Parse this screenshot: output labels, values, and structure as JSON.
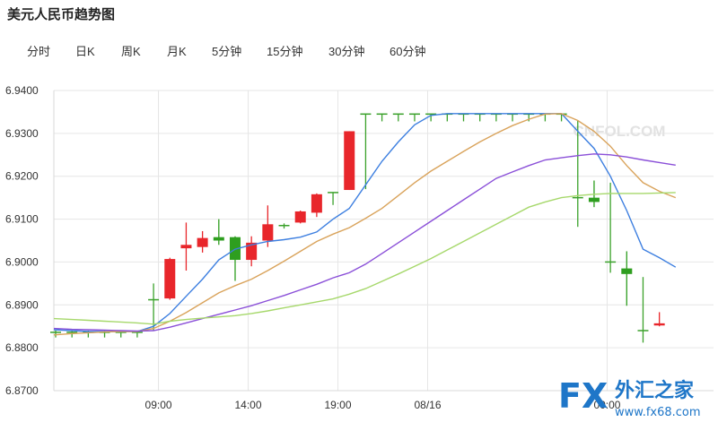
{
  "page": {
    "title": "美元人民币趋势图"
  },
  "tabs": [
    {
      "label": "分时"
    },
    {
      "label": "日K"
    },
    {
      "label": "周K"
    },
    {
      "label": "月K"
    },
    {
      "label": "5分钟"
    },
    {
      "label": "15分钟"
    },
    {
      "label": "30分钟"
    },
    {
      "label": "60分钟"
    }
  ],
  "watermark": {
    "text": "CNFOL.COM",
    "logo_fx": "FX",
    "logo_cn": "外汇之家",
    "logo_url": "www.fx68.com"
  },
  "colors": {
    "up": "#e8262b",
    "down": "#2e9e1f",
    "flat": "#3aa12a",
    "ma5": "#3d7fe0",
    "ma10": "#d9a35b",
    "ma20": "#8a4fd8",
    "ma30": "#a6d86b",
    "grid": "#e6e6e6"
  },
  "chart_data": {
    "type": "candlestick",
    "ylim": [
      6.87,
      6.94
    ],
    "yticks": [
      "6.9400",
      "6.9300",
      "6.9200",
      "6.9100",
      "6.9000",
      "6.8900",
      "6.8800",
      "6.8700"
    ],
    "xticks": [
      {
        "index": 6.3,
        "label": "09:00"
      },
      {
        "index": 11.8,
        "label": "14:00"
      },
      {
        "index": 17.3,
        "label": "19:00"
      },
      {
        "index": 22.8,
        "label": "08/16"
      },
      {
        "index": 33.8,
        "label": "00:00"
      }
    ],
    "candles": [
      {
        "o": 6.8836,
        "h": 6.884,
        "l": 6.8824,
        "c": 6.8836
      },
      {
        "o": 6.8836,
        "h": 6.884,
        "l": 6.8824,
        "c": 6.8836
      },
      {
        "o": 6.8836,
        "h": 6.884,
        "l": 6.8824,
        "c": 6.8836
      },
      {
        "o": 6.8836,
        "h": 6.884,
        "l": 6.8824,
        "c": 6.8836
      },
      {
        "o": 6.8836,
        "h": 6.884,
        "l": 6.8824,
        "c": 6.8836
      },
      {
        "o": 6.8836,
        "h": 6.884,
        "l": 6.8824,
        "c": 6.8836
      },
      {
        "o": 6.8912,
        "h": 6.895,
        "l": 6.884,
        "c": 6.8912
      },
      {
        "o": 6.8915,
        "h": 6.901,
        "l": 6.8912,
        "c": 6.9007
      },
      {
        "o": 6.9032,
        "h": 6.9092,
        "l": 6.898,
        "c": 6.904
      },
      {
        "o": 6.9035,
        "h": 6.9072,
        "l": 6.9022,
        "c": 6.9056
      },
      {
        "o": 6.9058,
        "h": 6.91,
        "l": 6.904,
        "c": 6.905
      },
      {
        "o": 6.9058,
        "h": 6.906,
        "l": 6.8956,
        "c": 6.9005
      },
      {
        "o": 6.9005,
        "h": 6.906,
        "l": 6.899,
        "c": 6.9045
      },
      {
        "o": 6.905,
        "h": 6.9132,
        "l": 6.9035,
        "c": 6.9088
      },
      {
        "o": 6.9085,
        "h": 6.909,
        "l": 6.9078,
        "c": 6.9085
      },
      {
        "o": 6.9092,
        "h": 6.912,
        "l": 6.909,
        "c": 6.9118
      },
      {
        "o": 6.9115,
        "h": 6.916,
        "l": 6.9105,
        "c": 6.9158
      },
      {
        "o": 6.9162,
        "h": 6.9163,
        "l": 6.9133,
        "c": 6.9162
      },
      {
        "o": 6.9168,
        "h": 6.9305,
        "l": 6.9168,
        "c": 6.9305
      },
      {
        "o": 6.9345,
        "h": 6.9346,
        "l": 6.917,
        "c": 6.9345
      },
      {
        "o": 6.9345,
        "h": 6.9346,
        "l": 6.9328,
        "c": 6.9345
      },
      {
        "o": 6.9345,
        "h": 6.9346,
        "l": 6.9328,
        "c": 6.9345
      },
      {
        "o": 6.9345,
        "h": 6.9346,
        "l": 6.9328,
        "c": 6.9345
      },
      {
        "o": 6.9345,
        "h": 6.9346,
        "l": 6.9328,
        "c": 6.9345
      },
      {
        "o": 6.9345,
        "h": 6.9346,
        "l": 6.9328,
        "c": 6.9345
      },
      {
        "o": 6.9345,
        "h": 6.9346,
        "l": 6.9328,
        "c": 6.9345
      },
      {
        "o": 6.9345,
        "h": 6.9346,
        "l": 6.9328,
        "c": 6.9345
      },
      {
        "o": 6.9345,
        "h": 6.9346,
        "l": 6.9328,
        "c": 6.9345
      },
      {
        "o": 6.9345,
        "h": 6.9346,
        "l": 6.9328,
        "c": 6.9345
      },
      {
        "o": 6.9345,
        "h": 6.9346,
        "l": 6.9328,
        "c": 6.9345
      },
      {
        "o": 6.9345,
        "h": 6.9346,
        "l": 6.9328,
        "c": 6.9345
      },
      {
        "o": 6.9345,
        "h": 6.9346,
        "l": 6.9328,
        "c": 6.9345
      },
      {
        "o": 6.915,
        "h": 6.933,
        "l": 6.9082,
        "c": 6.915
      },
      {
        "o": 6.915,
        "h": 6.919,
        "l": 6.9128,
        "c": 6.914
      },
      {
        "o": 6.9,
        "h": 6.9185,
        "l": 6.8975,
        "c": 6.9
      },
      {
        "o": 6.8985,
        "h": 6.9025,
        "l": 6.8898,
        "c": 6.8972
      },
      {
        "o": 6.884,
        "h": 6.8965,
        "l": 6.8812,
        "c": 6.884
      },
      {
        "o": 6.8852,
        "h": 6.8883,
        "l": 6.885,
        "c": 6.8857
      }
    ],
    "ma": [
      {
        "name": "MA5",
        "values": [
          6.8842,
          6.884,
          6.8838,
          6.8838,
          6.8838,
          6.8838,
          6.885,
          6.888,
          6.892,
          6.896,
          6.9005,
          6.903,
          6.904,
          6.9048,
          6.9052,
          6.9058,
          6.907,
          6.91,
          6.9125,
          6.918,
          6.9235,
          6.928,
          6.932,
          6.9342,
          6.9346,
          6.9346,
          6.9346,
          6.9346,
          6.9346,
          6.9346,
          6.9346,
          6.9346,
          6.9305,
          6.9265,
          6.92,
          6.912,
          6.903,
          6.901,
          6.8988
        ]
      },
      {
        "name": "MA10",
        "values": [
          6.883,
          6.8833,
          6.8835,
          6.8837,
          6.8838,
          6.8838,
          6.8845,
          6.8862,
          6.8882,
          6.8905,
          6.8928,
          6.8945,
          6.896,
          6.898,
          6.9002,
          6.9025,
          6.9048,
          6.9065,
          6.908,
          6.9102,
          6.9125,
          6.9155,
          6.9185,
          6.9212,
          6.9235,
          6.9258,
          6.928,
          6.93,
          6.9318,
          6.9333,
          6.9345,
          6.9346,
          6.933,
          6.9305,
          6.927,
          6.9225,
          6.9185,
          6.9165,
          6.915
        ]
      },
      {
        "name": "MA20",
        "values": [
          6.8845,
          6.8843,
          6.8842,
          6.8841,
          6.884,
          6.8839,
          6.884,
          6.8848,
          6.8858,
          6.8868,
          6.8878,
          6.8888,
          6.8898,
          6.891,
          6.8922,
          6.8935,
          6.8948,
          6.8963,
          6.8975,
          6.8995,
          6.902,
          6.9045,
          6.907,
          6.9095,
          6.912,
          6.9145,
          6.917,
          6.9195,
          6.921,
          6.9225,
          6.9238,
          6.9243,
          6.9248,
          6.9252,
          6.925,
          6.9245,
          6.9238,
          6.9232,
          6.9226
        ]
      },
      {
        "name": "MA30",
        "values": [
          6.8868,
          6.8866,
          6.8864,
          6.8862,
          6.886,
          6.8858,
          6.8855,
          6.8862,
          6.8866,
          6.8869,
          6.8872,
          6.8875,
          6.888,
          6.8886,
          6.8893,
          6.89,
          6.8907,
          6.8914,
          6.8925,
          6.8938,
          6.8955,
          6.8972,
          6.899,
          6.9008,
          6.9028,
          6.9048,
          6.9068,
          6.9088,
          6.9108,
          6.9128,
          6.914,
          6.915,
          6.9155,
          6.9158,
          6.916,
          6.916,
          6.916,
          6.9161,
          6.9162
        ]
      }
    ]
  }
}
